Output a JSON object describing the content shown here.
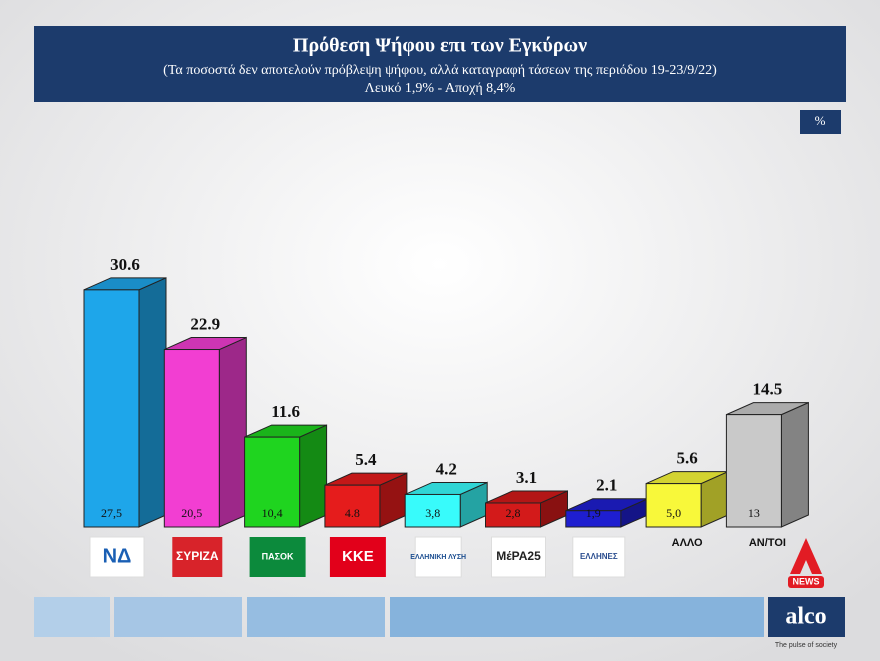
{
  "chart_data": {
    "type": "bar3d",
    "title": "Πρόθεση Ψήφου επι των Εγκύρων",
    "subtitle": "(Τα ποσοστά δεν αποτελούν πρόβλεψη ψήφου, αλλά καταγραφή τάσεων της περιόδου  19-23/9/22)",
    "note": "Λευκό 1,9% - Αποχή 8,4%",
    "unit": "%",
    "categories": [
      "ΝΔ",
      "ΣΥΡΙΖΑ",
      "ΠΑΣΟΚ",
      "ΚΚΕ",
      "ΕΛΛΗΝΙΚΗ ΛΥΣΗ",
      "ΜέΡΑ25",
      "ΕΛΛΗΝΕΣ",
      "ΑΛΛΟ",
      "ΑΝ/ΤΟΙ"
    ],
    "values": [
      30.6,
      22.9,
      11.6,
      5.4,
      4.2,
      3.1,
      2.1,
      5.6,
      14.5
    ],
    "colors": [
      "#1ea6ea",
      "#f23ed2",
      "#1fd41f",
      "#e51c1c",
      "#38fbfb",
      "#d31a1a",
      "#1e1ed0",
      "#f8f83a",
      "#c9c9c9"
    ],
    "inner_values": [
      27.5,
      20.5,
      10.4,
      4.8,
      3.8,
      2.8,
      1.9,
      5.0,
      13
    ],
    "inner_value_labels": [
      "27,5",
      "20,5",
      "10,4",
      "4.8",
      "3,8",
      "2,8",
      "1,9",
      "5,0",
      "13"
    ]
  },
  "branding": {
    "news_logo": "NEWS",
    "company": "alco",
    "slogan": "The pulse of society"
  }
}
